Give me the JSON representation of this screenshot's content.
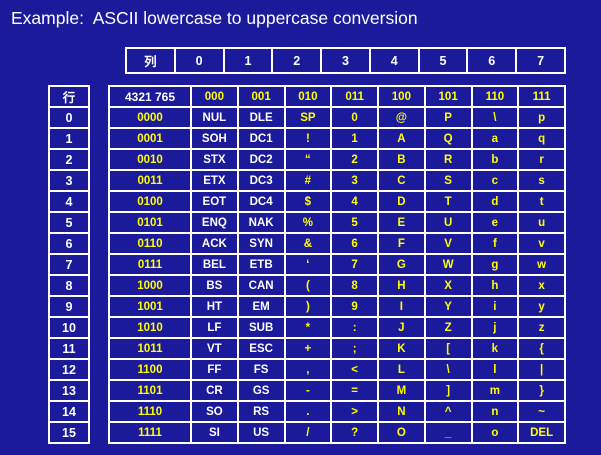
{
  "title": "Example:  ASCII lowercase to uppercase conversion",
  "colors": {
    "background": "#1A1A9A",
    "text": "#FFFFFF",
    "highlight": "#FFFF00",
    "grid": "#FFFFFF"
  },
  "column_header": {
    "label": "列",
    "indices": [
      "0",
      "1",
      "2",
      "3",
      "4",
      "5",
      "6",
      "7"
    ]
  },
  "row_header": {
    "label": "行",
    "indices": [
      "0",
      "1",
      "2",
      "3",
      "4",
      "5",
      "6",
      "7",
      "8",
      "9",
      "10",
      "11",
      "12",
      "13",
      "14",
      "15"
    ]
  },
  "table": {
    "corner": "4321 765",
    "high_bits": [
      "000",
      "001",
      "010",
      "011",
      "100",
      "101",
      "110",
      "111"
    ],
    "rows": [
      {
        "bits": "0000",
        "chars": [
          "NUL",
          "DLE",
          "SP",
          "0",
          "@",
          "P",
          "\\",
          "p"
        ]
      },
      {
        "bits": "0001",
        "chars": [
          "SOH",
          "DC1",
          "!",
          "1",
          "A",
          "Q",
          "a",
          "q"
        ]
      },
      {
        "bits": "0010",
        "chars": [
          "STX",
          "DC2",
          "“",
          "2",
          "B",
          "R",
          "b",
          "r"
        ]
      },
      {
        "bits": "0011",
        "chars": [
          "ETX",
          "DC3",
          "#",
          "3",
          "C",
          "S",
          "c",
          "s"
        ]
      },
      {
        "bits": "0100",
        "chars": [
          "EOT",
          "DC4",
          "$",
          "4",
          "D",
          "T",
          "d",
          "t"
        ]
      },
      {
        "bits": "0101",
        "chars": [
          "ENQ",
          "NAK",
          "%",
          "5",
          "E",
          "U",
          "e",
          "u"
        ]
      },
      {
        "bits": "0110",
        "chars": [
          "ACK",
          "SYN",
          "&",
          "6",
          "F",
          "V",
          "f",
          "v"
        ]
      },
      {
        "bits": "0111",
        "chars": [
          "BEL",
          "ETB",
          "‘",
          "7",
          "G",
          "W",
          "g",
          "w"
        ]
      },
      {
        "bits": "1000",
        "chars": [
          "BS",
          "CAN",
          "(",
          "8",
          "H",
          "X",
          "h",
          "x"
        ]
      },
      {
        "bits": "1001",
        "chars": [
          "HT",
          "EM",
          ")",
          "9",
          "I",
          "Y",
          "i",
          "y"
        ]
      },
      {
        "bits": "1010",
        "chars": [
          "LF",
          "SUB",
          "*",
          ":",
          "J",
          "Z",
          "j",
          "z"
        ]
      },
      {
        "bits": "1011",
        "chars": [
          "VT",
          "ESC",
          "+",
          ";",
          "K",
          "[",
          "k",
          "{"
        ]
      },
      {
        "bits": "1100",
        "chars": [
          "FF",
          "FS",
          ",",
          "<",
          "L",
          "\\",
          "l",
          "|"
        ]
      },
      {
        "bits": "1101",
        "chars": [
          "CR",
          "GS",
          "-",
          "=",
          "M",
          "]",
          "m",
          "}"
        ]
      },
      {
        "bits": "1110",
        "chars": [
          "SO",
          "RS",
          ".",
          ">",
          "N",
          "^",
          "n",
          "~"
        ]
      },
      {
        "bits": "1111",
        "chars": [
          "SI",
          "US",
          "/",
          "?",
          "O",
          "_",
          "o",
          "DEL"
        ]
      }
    ]
  }
}
